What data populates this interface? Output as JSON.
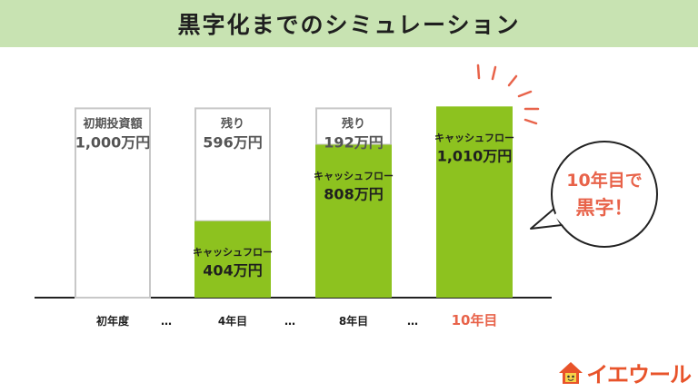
{
  "title": "黒字化までのシミュレーション",
  "chart_data": {
    "type": "bar",
    "unit": "万円",
    "ylim": [
      0,
      1010
    ],
    "categories": [
      "初年度",
      "…",
      "4年目",
      "…",
      "8年目",
      "…",
      "10年目"
    ],
    "bars": [
      {
        "category": "初年度",
        "total": 1000,
        "cashflow": 0,
        "upper_label": [
          "初期投資額",
          "1,000万円"
        ],
        "lower_label": []
      },
      {
        "category": "4年目",
        "total": 1000,
        "cashflow": 404,
        "upper_label": [
          "残り",
          "596万円"
        ],
        "lower_label": [
          "キャッシュフロー",
          "404万円"
        ]
      },
      {
        "category": "8年目",
        "total": 1000,
        "cashflow": 808,
        "upper_label": [
          "残り",
          "192万円"
        ],
        "lower_label": [
          "キャッシュフロー",
          "808万円"
        ]
      },
      {
        "category": "10年目",
        "total": 1010,
        "cashflow": 1010,
        "upper_label": [],
        "lower_label": [
          "キャッシュフロー",
          "1,010万円"
        ]
      }
    ],
    "ellipsis": "…",
    "highlight_category": "10年目",
    "callout": [
      "10年目で",
      "黒字！"
    ],
    "colors": {
      "cashflow": "#8dc21f",
      "remaining_border": "#c8c8c8",
      "highlight": "#e8634a",
      "text": "#3a3a3a"
    }
  },
  "logo": {
    "text": "イエウール",
    "color": "#e8532a"
  }
}
